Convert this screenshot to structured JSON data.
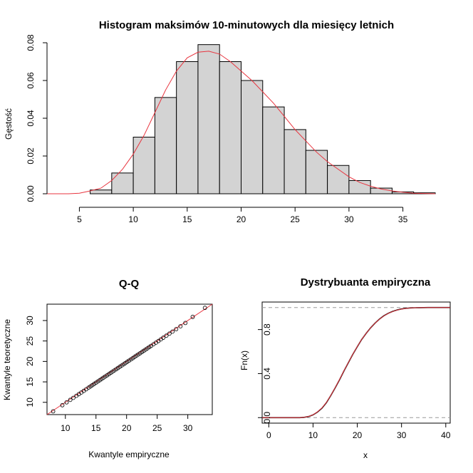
{
  "chart_data": [
    {
      "type": "bar",
      "subtype": "histogram-with-density",
      "title": "Histogram maksimów 10-minutowych dla miesięcy letnich",
      "xlabel": "",
      "ylabel": "Gęstość",
      "xlim": [
        2,
        38
      ],
      "ylim": [
        0,
        0.08
      ],
      "xticks": [
        "5",
        "10",
        "15",
        "20",
        "25",
        "30",
        "35"
      ],
      "yticks": [
        "0.00",
        "0.02",
        "0.04",
        "0.06",
        "0.08"
      ],
      "bin_edges": [
        6,
        8,
        10,
        12,
        14,
        16,
        18,
        20,
        22,
        24,
        26,
        28,
        30,
        32,
        34,
        36,
        38
      ],
      "values": [
        0.002,
        0.011,
        0.03,
        0.051,
        0.07,
        0.079,
        0.07,
        0.06,
        0.046,
        0.034,
        0.023,
        0.015,
        0.007,
        0.003,
        0.001,
        0.0005
      ],
      "density_curve": {
        "color": "#e8353f",
        "x": [
          2,
          4,
          5,
          6,
          7,
          8,
          9,
          10,
          11,
          12,
          13,
          14,
          15,
          16,
          17,
          18,
          19,
          20,
          21,
          22,
          23,
          24,
          25,
          26,
          27,
          28,
          29,
          30,
          31,
          32,
          33,
          34,
          35,
          36,
          38
        ],
        "y": [
          0,
          0,
          0.0003,
          0.0015,
          0.003,
          0.007,
          0.013,
          0.021,
          0.031,
          0.043,
          0.055,
          0.065,
          0.072,
          0.075,
          0.0755,
          0.074,
          0.07,
          0.065,
          0.06,
          0.054,
          0.048,
          0.041,
          0.034,
          0.028,
          0.022,
          0.017,
          0.013,
          0.009,
          0.006,
          0.004,
          0.0025,
          0.0015,
          0.0008,
          0.0003,
          0
        ]
      },
      "bar_fill": "#d3d3d3"
    },
    {
      "type": "scatter",
      "title": "Q-Q",
      "xlabel": "Kwantyle empiryczne",
      "ylabel": "Kwantyle teoretyczne",
      "xlim": [
        7,
        34
      ],
      "ylim": [
        7,
        34
      ],
      "xticks": [
        "10",
        "15",
        "20",
        "25",
        "30"
      ],
      "yticks": [
        "10",
        "15",
        "20",
        "25",
        "30"
      ],
      "reference_line": {
        "slope": 1,
        "intercept": 0,
        "color": "#e8353f"
      },
      "x": [
        8.0,
        9.5,
        10.2,
        10.8,
        11.3,
        11.8,
        12.2,
        12.6,
        13.0,
        13.4,
        13.8,
        14.1,
        14.4,
        14.7,
        15.0,
        15.3,
        15.6,
        15.9,
        16.2,
        16.5,
        16.8,
        17.1,
        17.4,
        17.7,
        18.0,
        18.3,
        18.6,
        18.9,
        19.2,
        19.5,
        19.8,
        20.1,
        20.4,
        20.7,
        21.0,
        21.3,
        21.6,
        21.9,
        22.2,
        22.5,
        22.8,
        23.1,
        23.4,
        23.7,
        24.0,
        24.4,
        24.8,
        25.2,
        25.6,
        26.0,
        26.5,
        27.0,
        27.5,
        28.1,
        28.8,
        29.6,
        30.8,
        32.8
      ],
      "y": [
        7.8,
        9.3,
        10.0,
        10.6,
        11.1,
        11.6,
        12.0,
        12.4,
        12.8,
        13.2,
        13.6,
        13.9,
        14.2,
        14.5,
        14.8,
        15.1,
        15.4,
        15.7,
        16.0,
        16.3,
        16.6,
        16.9,
        17.2,
        17.5,
        17.8,
        18.1,
        18.4,
        18.7,
        19.0,
        19.3,
        19.6,
        19.9,
        20.2,
        20.5,
        20.8,
        21.1,
        21.4,
        21.7,
        22.0,
        22.3,
        22.6,
        22.9,
        23.2,
        23.5,
        23.8,
        24.2,
        24.6,
        25.0,
        25.4,
        25.8,
        26.3,
        26.8,
        27.3,
        27.9,
        28.6,
        29.4,
        30.9,
        33.1
      ]
    },
    {
      "type": "line",
      "title": "Dystrybuanta empiryczna",
      "xlabel": "x",
      "ylabel": "Fn(x)",
      "xlim": [
        -1.5,
        41
      ],
      "ylim": [
        -0.05,
        1.05
      ],
      "xticks": [
        "0",
        "10",
        "20",
        "30",
        "40"
      ],
      "yticks": [
        "0.0",
        "0.4",
        "0.8"
      ],
      "reference_lines_y": [
        0,
        1
      ],
      "series": [
        {
          "color": "#000000",
          "x": [
            -1.5,
            7,
            8,
            9,
            10,
            11,
            12,
            13,
            14,
            15,
            16,
            17,
            18,
            19,
            20,
            21,
            22,
            23,
            24,
            25,
            26,
            27,
            28,
            29,
            30,
            31,
            32,
            33,
            34,
            36,
            41
          ],
          "y": [
            0,
            0,
            0.003,
            0.01,
            0.025,
            0.05,
            0.085,
            0.135,
            0.2,
            0.27,
            0.345,
            0.425,
            0.5,
            0.575,
            0.645,
            0.71,
            0.765,
            0.815,
            0.858,
            0.895,
            0.925,
            0.948,
            0.965,
            0.978,
            0.987,
            0.993,
            0.996,
            0.998,
            0.999,
            1,
            1
          ]
        },
        {
          "color": "#e8353f",
          "x": [
            -1.5,
            7,
            8,
            9,
            10,
            11,
            12,
            13,
            14,
            15,
            16,
            17,
            18,
            19,
            20,
            21,
            22,
            23,
            24,
            25,
            26,
            27,
            28,
            29,
            30,
            31,
            32,
            33,
            34,
            36,
            41
          ],
          "y": [
            0,
            0,
            0.004,
            0.011,
            0.026,
            0.052,
            0.088,
            0.137,
            0.202,
            0.272,
            0.347,
            0.426,
            0.501,
            0.576,
            0.646,
            0.711,
            0.766,
            0.815,
            0.858,
            0.894,
            0.924,
            0.947,
            0.964,
            0.977,
            0.986,
            0.992,
            0.996,
            0.998,
            0.999,
            1,
            1
          ]
        }
      ]
    }
  ]
}
